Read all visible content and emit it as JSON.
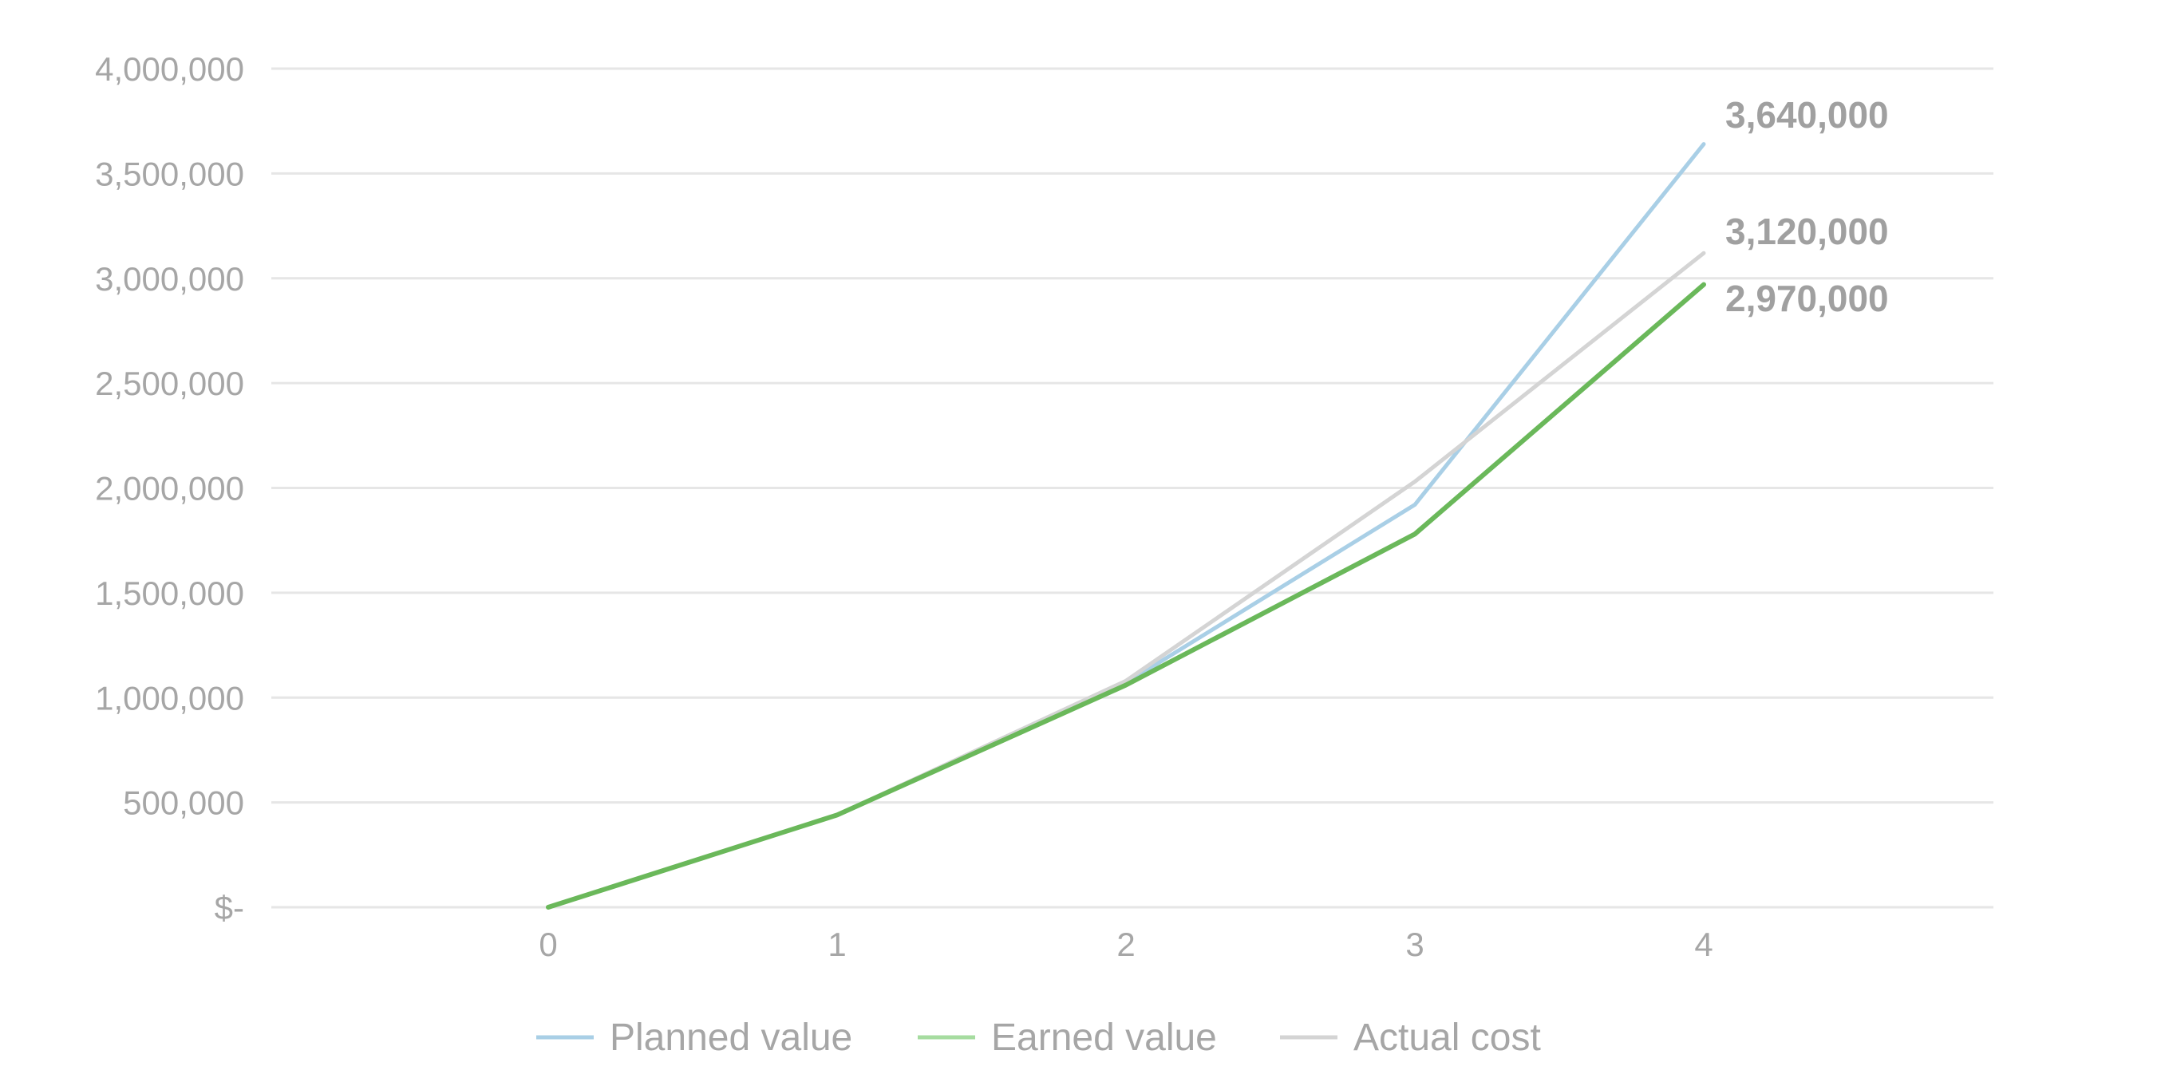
{
  "chart_data": {
    "type": "line",
    "x": [
      0,
      1,
      2,
      3,
      4
    ],
    "xticks": [
      "0",
      "1",
      "2",
      "3",
      "4"
    ],
    "ylim": [
      0,
      4000000
    ],
    "yticks": [
      {
        "value": 0,
        "label": "$-"
      },
      {
        "value": 500000,
        "label": "500,000"
      },
      {
        "value": 1000000,
        "label": "1,000,000"
      },
      {
        "value": 1500000,
        "label": "1,500,000"
      },
      {
        "value": 2000000,
        "label": "2,000,000"
      },
      {
        "value": 2500000,
        "label": "2,500,000"
      },
      {
        "value": 3000000,
        "label": "3,000,000"
      },
      {
        "value": 3500000,
        "label": "3,500,000"
      },
      {
        "value": 4000000,
        "label": "4,000,000"
      }
    ],
    "grid": true,
    "legend_position": "bottom",
    "series": [
      {
        "name": "Planned value",
        "color": "#a9cfe6",
        "values": [
          0,
          440000,
          1070000,
          1920000,
          3640000
        ],
        "end_label": "3,640,000"
      },
      {
        "name": "Earned value",
        "color": "#6ab85a",
        "legend_color": "#a6dca0",
        "values": [
          0,
          440000,
          1060000,
          1780000,
          2970000
        ],
        "end_label": "2,970,000"
      },
      {
        "name": "Actual cost",
        "color": "#d4d4d4",
        "values": [
          0,
          440000,
          1080000,
          2030000,
          3120000
        ],
        "end_label": "3,120,000"
      }
    ]
  }
}
